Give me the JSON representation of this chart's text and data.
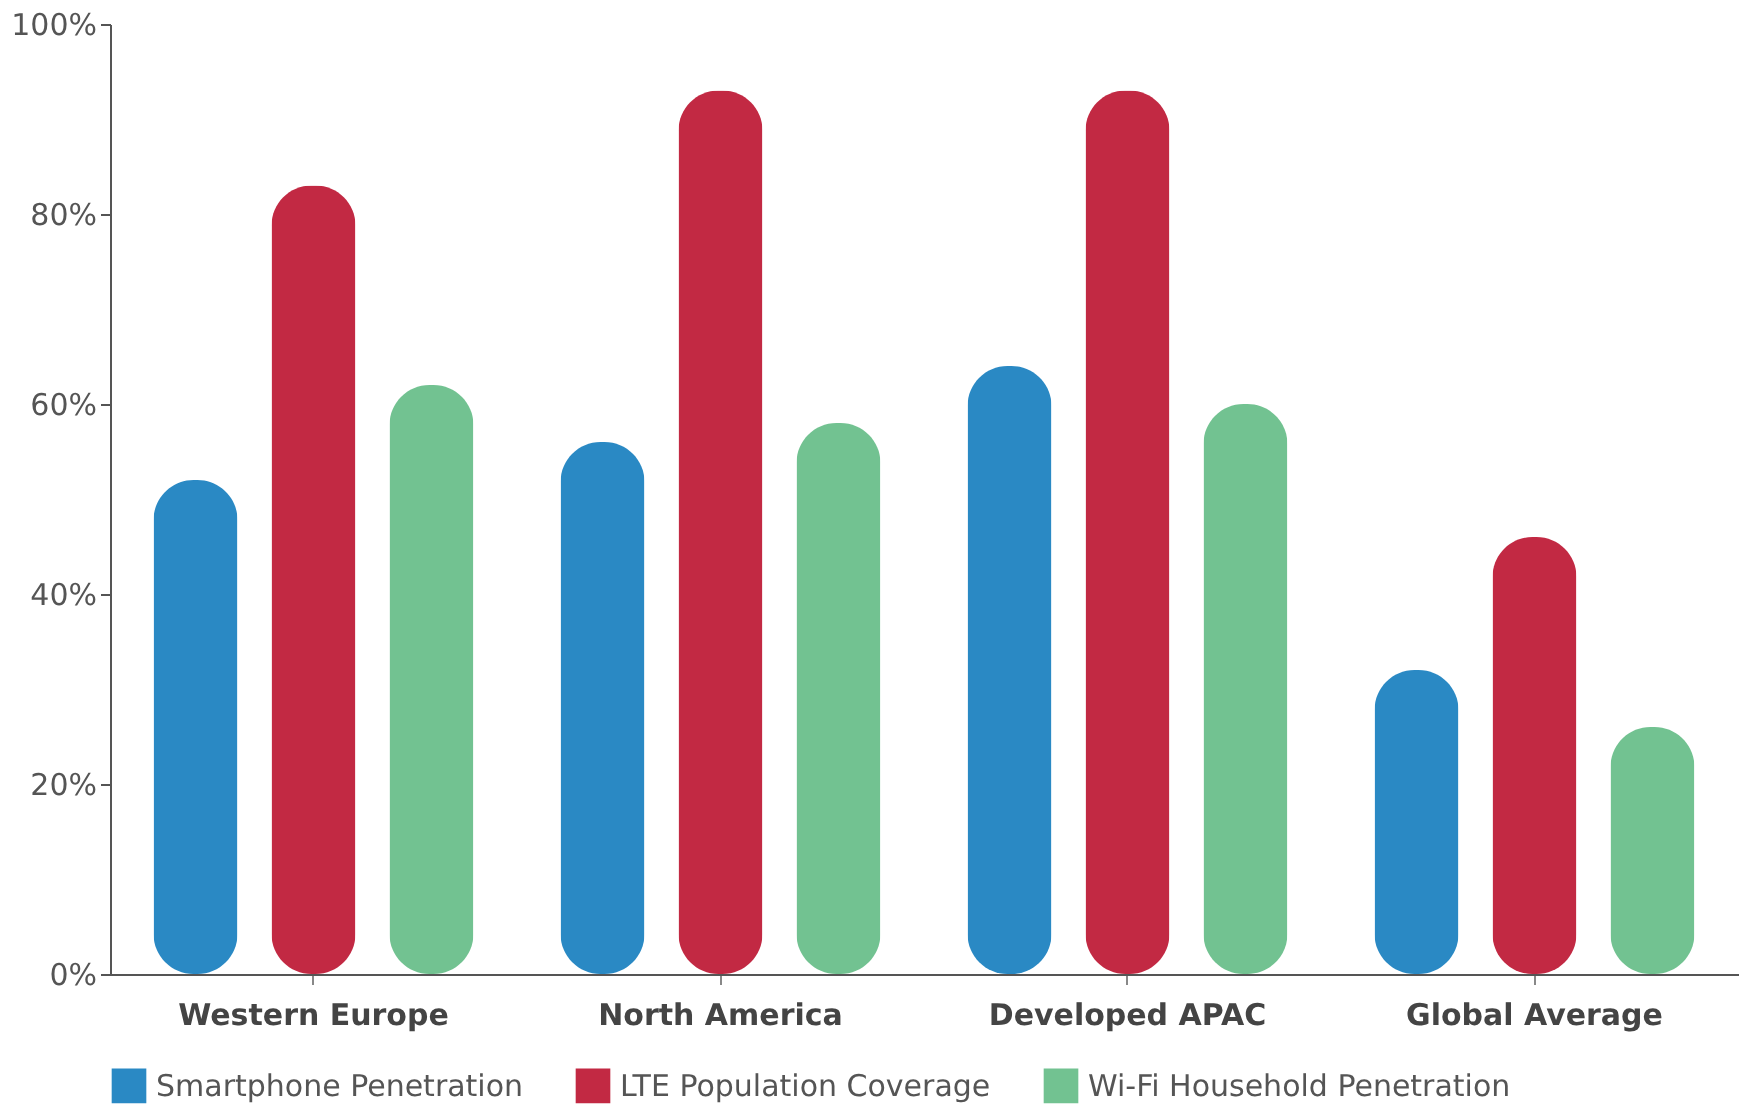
{
  "chart_data": {
    "type": "bar",
    "categories": [
      "Western Europe",
      "North America",
      "Developed APAC",
      "Global Average"
    ],
    "series": [
      {
        "name": "Smartphone Penetration",
        "color": "#2a89c4",
        "values": [
          52,
          56,
          64,
          32
        ]
      },
      {
        "name": "LTE Population Coverage",
        "color": "#c22943",
        "values": [
          83,
          93,
          93,
          46
        ]
      },
      {
        "name": "Wi-Fi Household Penetration",
        "color": "#72c291",
        "values": [
          62,
          58,
          60,
          26
        ]
      }
    ],
    "ylim": [
      0,
      100
    ],
    "yticks": [
      {
        "value": 0,
        "label": "0%"
      },
      {
        "value": 20,
        "label": "20%"
      },
      {
        "value": 40,
        "label": "40%"
      },
      {
        "value": 60,
        "label": "60%"
      },
      {
        "value": 80,
        "label": "80%"
      },
      {
        "value": 100,
        "label": "100%"
      }
    ],
    "grid": false,
    "legend": "bottom"
  }
}
